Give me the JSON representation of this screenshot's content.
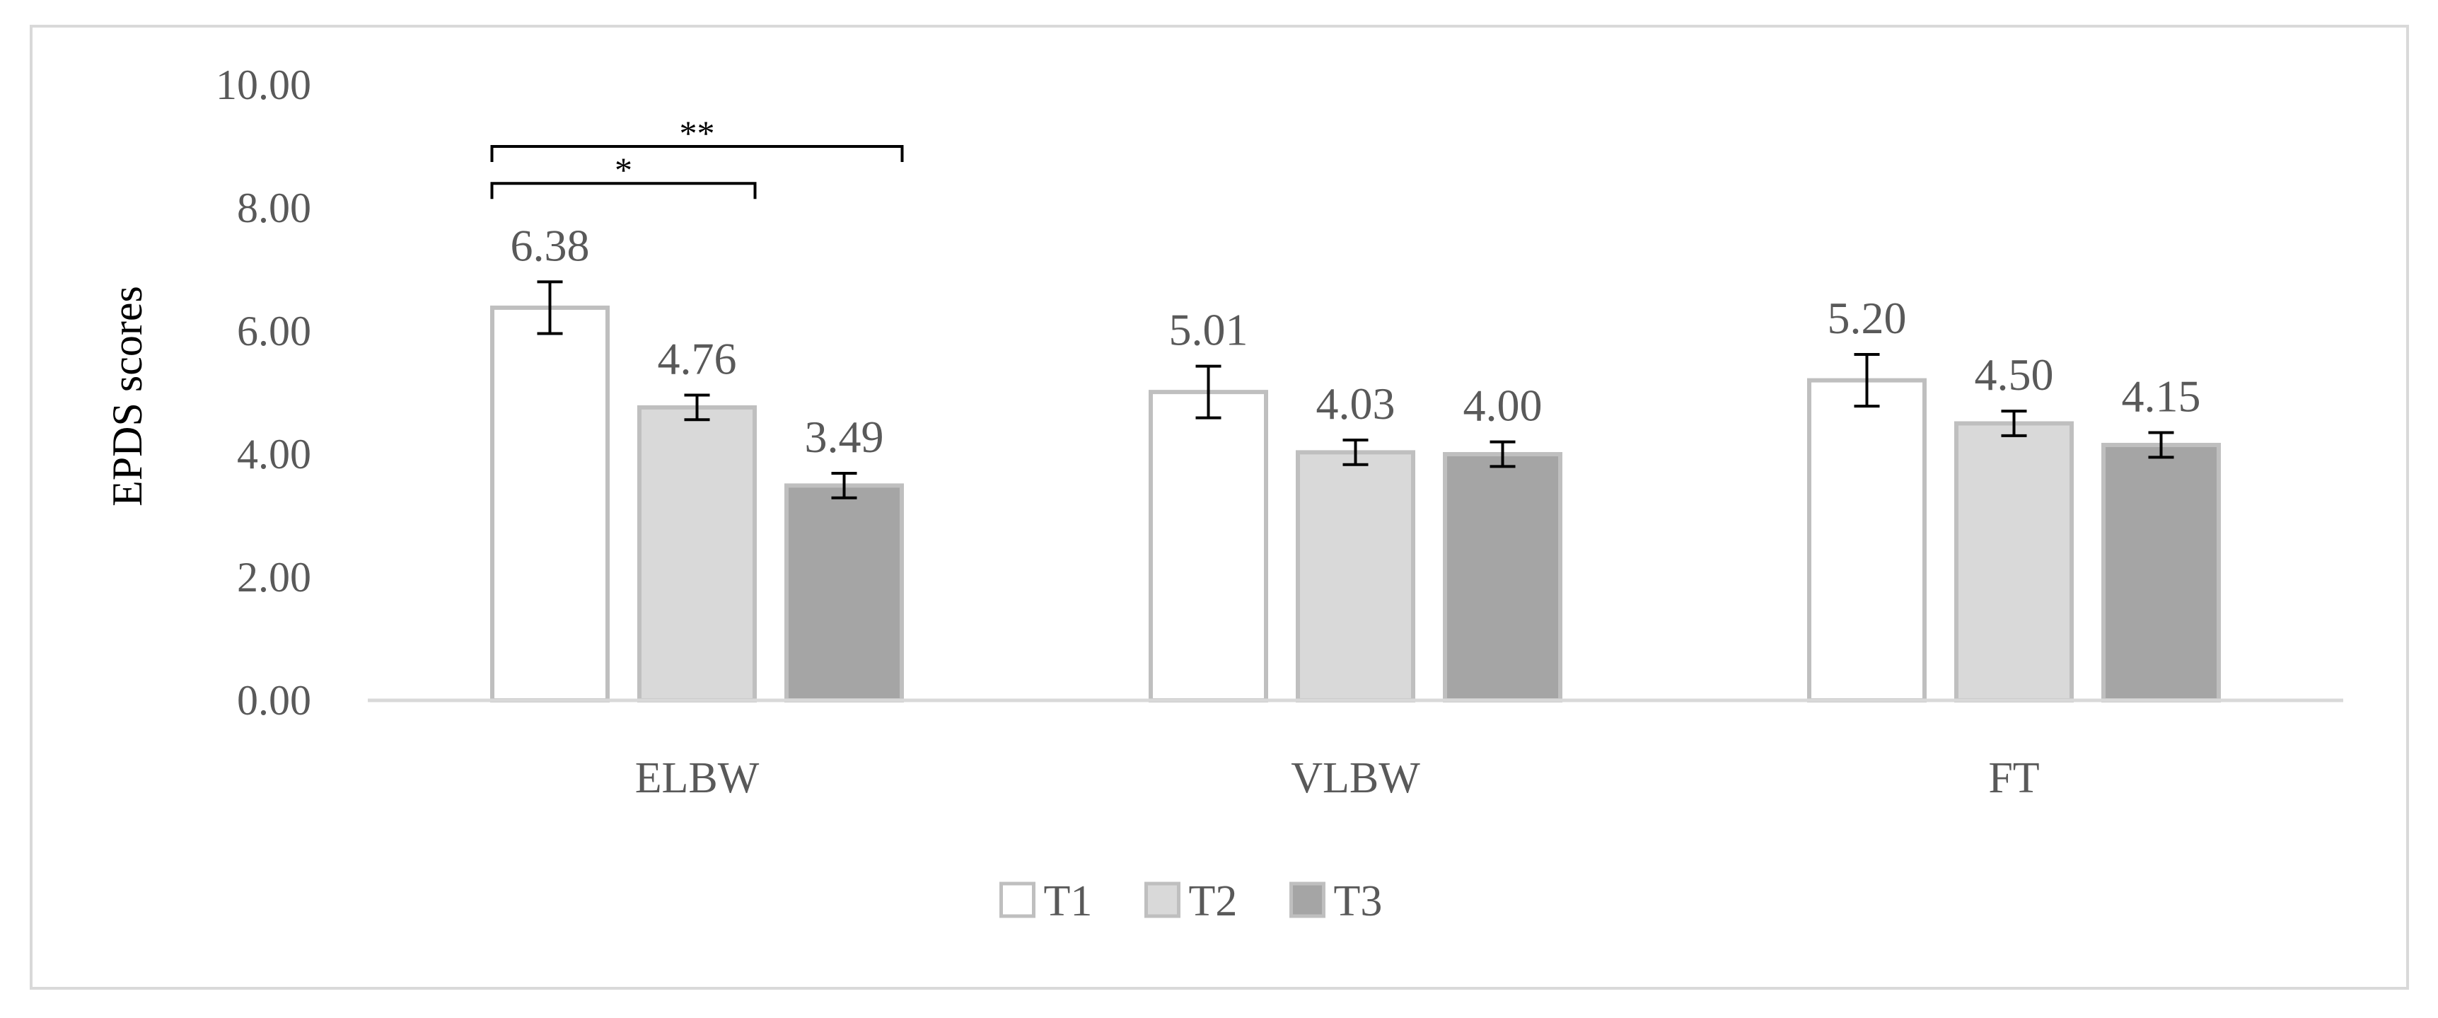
{
  "chart_data": {
    "type": "bar",
    "title": "",
    "xlabel": "",
    "ylabel": "EPDS scores",
    "ylim": [
      0,
      10
    ],
    "yticks": [
      "0.00",
      "2.00",
      "4.00",
      "6.00",
      "8.00",
      "10.00"
    ],
    "grid": false,
    "legend_position": "bottom",
    "categories": [
      "ELBW",
      "VLBW",
      "FT"
    ],
    "series": [
      {
        "name": "T1",
        "values": [
          6.38,
          5.01,
          5.2
        ],
        "labels": [
          "6.38",
          "5.01",
          "5.20"
        ],
        "error": [
          0.42,
          0.42,
          0.42
        ],
        "color": "#ffffff",
        "edge": "#bfbfbf"
      },
      {
        "name": "T2",
        "values": [
          4.76,
          4.03,
          4.5
        ],
        "labels": [
          "4.76",
          "4.03",
          "4.50"
        ],
        "error": [
          0.2,
          0.2,
          0.2
        ],
        "color": "#d9d9d9",
        "edge": "#bfbfbf"
      },
      {
        "name": "T3",
        "values": [
          3.49,
          4.0,
          4.15
        ],
        "labels": [
          "3.49",
          "4.00",
          "4.15"
        ],
        "error": [
          0.2,
          0.2,
          0.2
        ],
        "color": "#a5a5a5",
        "edge": "#bfbfbf"
      }
    ],
    "annotations": [
      {
        "label": "*",
        "category": "ELBW",
        "from_series": "T1",
        "to_series": "T2",
        "y": 8.4
      },
      {
        "label": "**",
        "category": "ELBW",
        "from_series": "T1",
        "to_series": "T3",
        "y": 9.0
      }
    ],
    "colors": {
      "axis": "#d9d9d9",
      "text": "#595959",
      "ylabel_text": "#000000",
      "error_bar": "#000000",
      "frame": "#d9d9d9"
    }
  }
}
